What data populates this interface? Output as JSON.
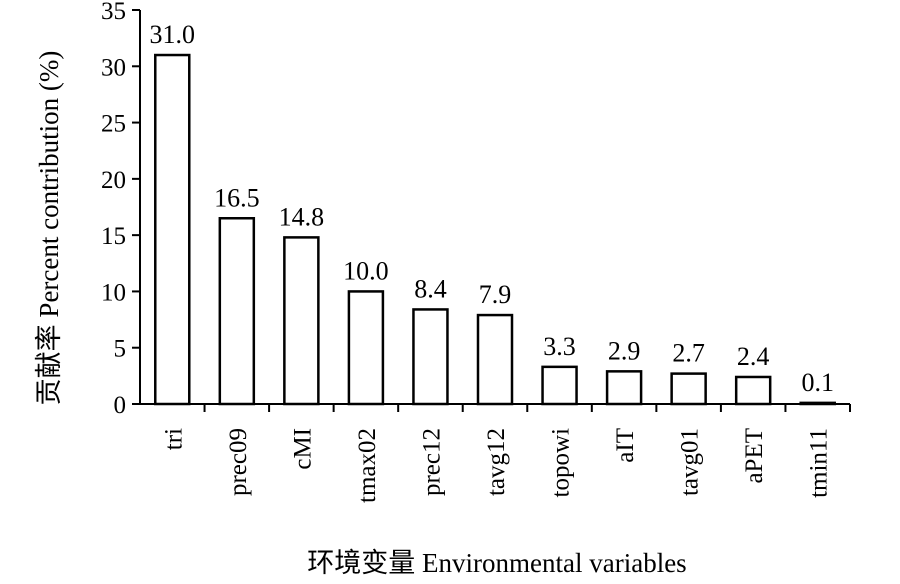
{
  "chart_data": {
    "type": "bar",
    "title": "",
    "xlabel": "环境变量 Environmental variables",
    "ylabel": "贡献率 Percent contribution (%)",
    "categories": [
      "tri",
      "prec09",
      "cMI",
      "tmax02",
      "prec12",
      "tavg12",
      "topowi",
      "aIT",
      "tavg01",
      "aPET",
      "tmin11"
    ],
    "values": [
      31.0,
      16.5,
      14.8,
      10.0,
      8.4,
      7.9,
      3.3,
      2.9,
      2.7,
      2.4,
      0.1
    ],
    "value_labels": [
      "31.0",
      "16.5",
      "14.8",
      "10.0",
      "8.4",
      "7.9",
      "3.3",
      "2.9",
      "2.7",
      "2.4",
      "0.1"
    ],
    "yticks": [
      0,
      5,
      10,
      15,
      20,
      25,
      30,
      35
    ],
    "ylim": [
      0,
      35
    ],
    "grid": false,
    "legend": "none",
    "bar_fill": "#ffffff",
    "bar_stroke": "#000000"
  }
}
